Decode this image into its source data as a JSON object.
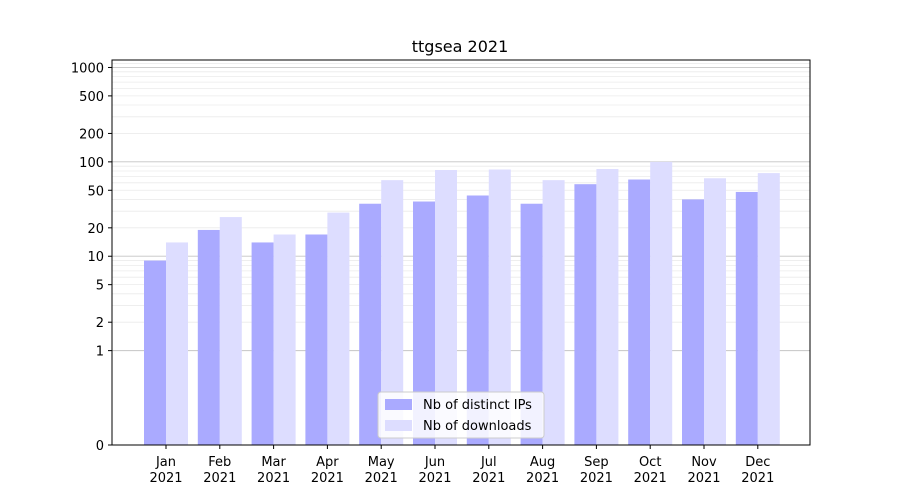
{
  "chart_data": {
    "type": "bar",
    "title": "ttgsea 2021",
    "xlabel": "",
    "ylabel": "",
    "yscale": "symlog",
    "ylim": [
      0,
      1200
    ],
    "categories": [
      "Jan\n2021",
      "Feb\n2021",
      "Mar\n2021",
      "Apr\n2021",
      "May\n2021",
      "Jun\n2021",
      "Jul\n2021",
      "Aug\n2021",
      "Sep\n2021",
      "Oct\n2021",
      "Nov\n2021",
      "Dec\n2021"
    ],
    "y_ticks": [
      "0",
      "1",
      "2",
      "5",
      "10",
      "20",
      "50",
      "100",
      "200",
      "500",
      "1000"
    ],
    "series": [
      {
        "name": "Nb of distinct IPs",
        "color": "#aaaaff",
        "values": [
          9,
          19,
          14,
          17,
          36,
          38,
          44,
          36,
          58,
          65,
          40,
          48
        ]
      },
      {
        "name": "Nb of downloads",
        "color": "#ddddff",
        "values": [
          14,
          26,
          17,
          29,
          64,
          82,
          83,
          64,
          84,
          100,
          67,
          76
        ]
      }
    ],
    "grid": true,
    "legend_position": "lower center"
  }
}
